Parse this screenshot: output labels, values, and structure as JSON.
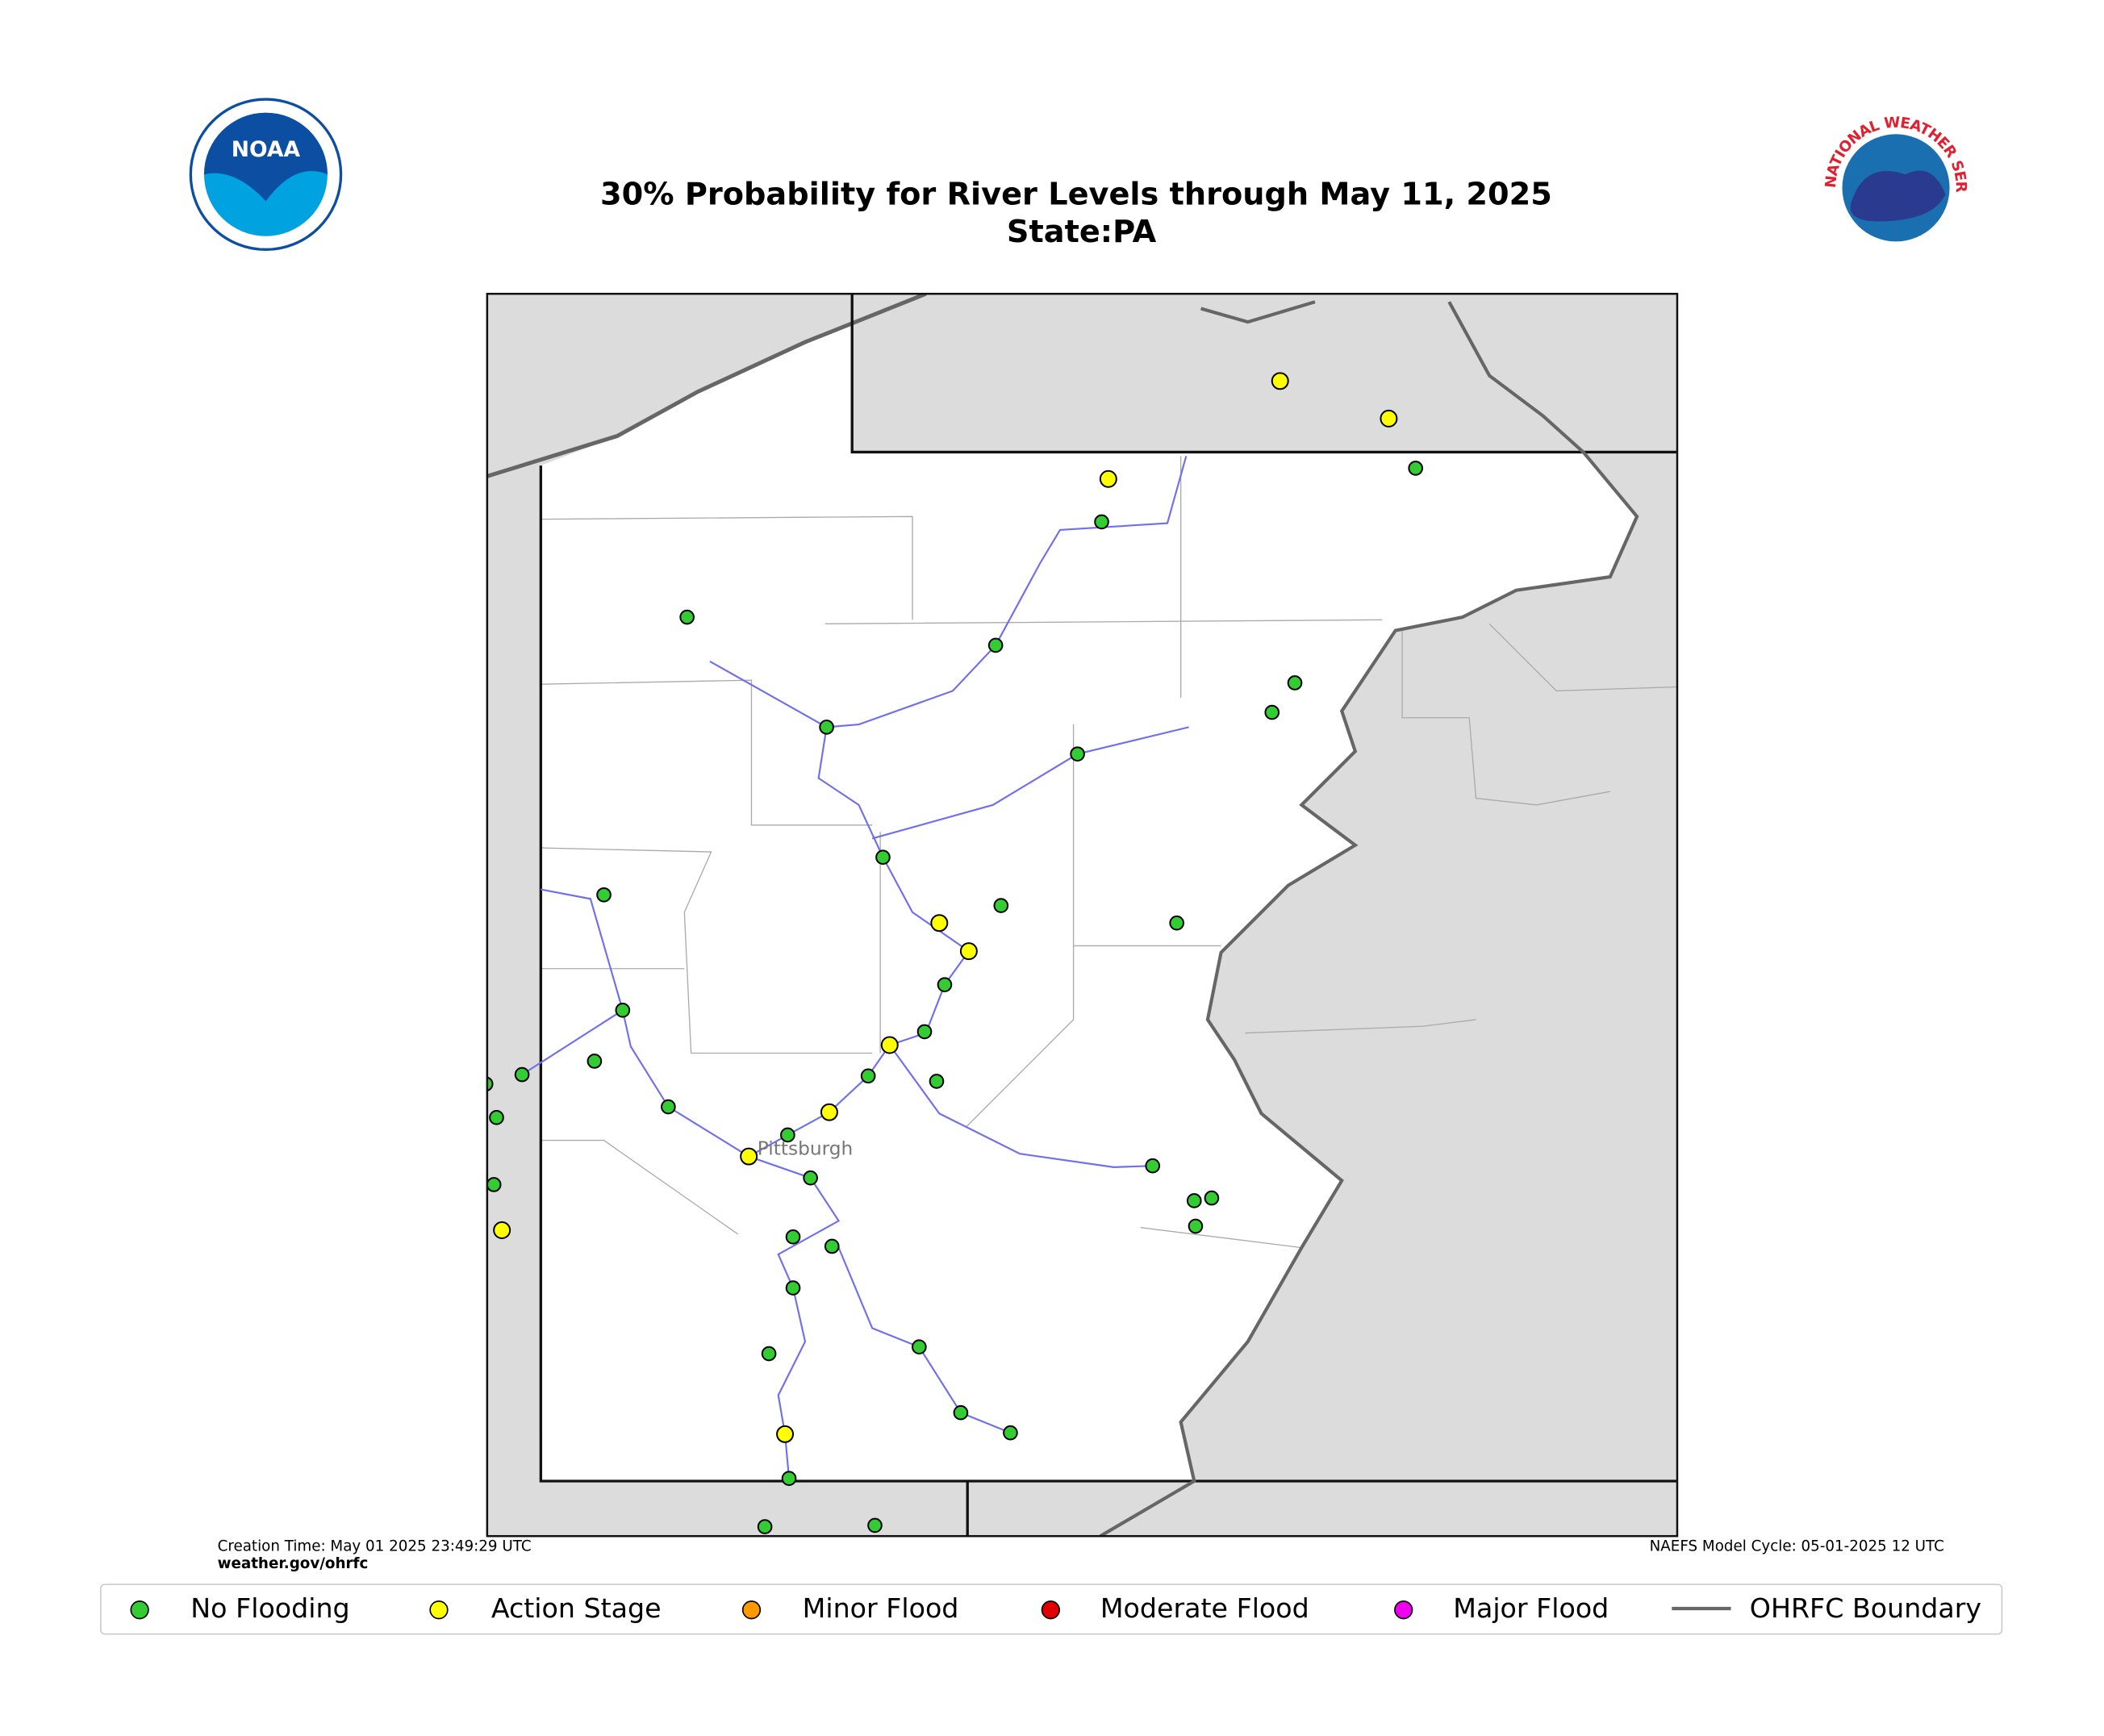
{
  "header": {
    "title": "30% Probability for River Levels through May 11, 2025",
    "subtitle": "State:PA"
  },
  "logos": {
    "noaa": "NOAA",
    "nws": "NATIONAL WEATHER SERVICE"
  },
  "map": {
    "city_label": "Pittsburgh"
  },
  "footer": {
    "creation_time": "Creation Time: May 01 2025 23:49:29 UTC",
    "website": "weather.gov/ohrfc",
    "model_cycle": "NAEFS Model Cycle: 05-01-2025 12 UTC"
  },
  "legend": [
    {
      "name": "No Flooding",
      "color": "#33cc33"
    },
    {
      "name": "Action Stage",
      "color": "#ffff00"
    },
    {
      "name": "Minor Flood",
      "color": "#ff9900"
    },
    {
      "name": "Moderate Flood",
      "color": "#e00000"
    },
    {
      "name": "Major Flood",
      "color": "#ee00ee"
    },
    {
      "name": "OHRFC Boundary",
      "color": "#666666",
      "line": true
    }
  ]
}
